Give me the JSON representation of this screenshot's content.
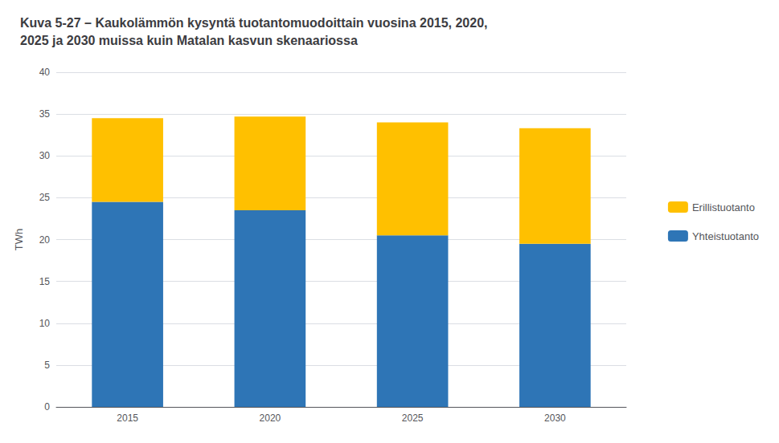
{
  "chart_data": {
    "type": "bar",
    "stacked": true,
    "title": "Kuva 5-27 – Kaukolämmön kysyntä tuotantomuodoittain vuosina 2015, 2020,\n2025 ja 2030 muissa kuin Matalan kasvun skenaariossa",
    "ylabel": "TWh",
    "categories": [
      "2015",
      "2020",
      "2025",
      "2030"
    ],
    "series": [
      {
        "name": "Yhteistuotanto",
        "color": "#2E75B6",
        "values": [
          24.5,
          23.5,
          20.5,
          19.5
        ]
      },
      {
        "name": "Erillistuotanto",
        "color": "#FFC000",
        "values": [
          10.0,
          11.2,
          13.5,
          13.8
        ]
      }
    ],
    "ylim": [
      0,
      40
    ],
    "yticks": [
      0,
      5,
      10,
      15,
      20,
      25,
      30,
      35,
      40
    ],
    "grid": true,
    "legend": "right"
  }
}
